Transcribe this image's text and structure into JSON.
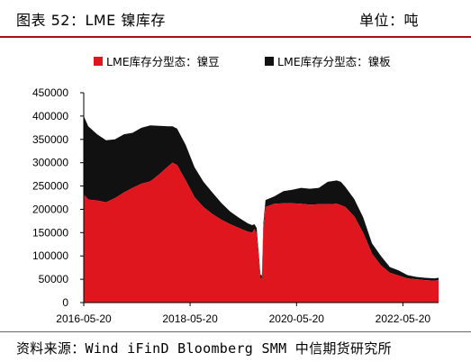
{
  "header": {
    "title": "图表 52：LME 镍库存",
    "unit": "单位：吨"
  },
  "footer": {
    "source": "资料来源：Wind iFinD Bloomberg SMM 中信期货研究所"
  },
  "colors": {
    "accent": "#a8101a",
    "nickel_briquettes": "#e0161e",
    "nickel_plate": "#111111"
  },
  "chart_data": {
    "type": "area",
    "stacked": true,
    "title": "",
    "xlabel": "",
    "ylabel": "",
    "ylim": [
      0,
      450000
    ],
    "yticks": [
      0,
      50000,
      100000,
      150000,
      200000,
      250000,
      300000,
      350000,
      400000,
      450000
    ],
    "ytick_labels": [
      "0",
      "50000",
      "100000",
      "150000",
      "200000",
      "250000",
      "300000",
      "350000",
      "400000",
      "450000"
    ],
    "xlim": [
      "2016-05-20",
      "2023-01-20"
    ],
    "xticks": [
      "2016-05-20",
      "2018-05-20",
      "2020-05-20",
      "2022-05-20"
    ],
    "legend": "top",
    "grid": false,
    "series": [
      {
        "name": "LME库存分型态：镍豆",
        "color": "#e0161e",
        "x": [
          "2016-05-20",
          "2016-06-20",
          "2016-08-20",
          "2016-10-20",
          "2016-12-20",
          "2017-02-20",
          "2017-04-20",
          "2017-06-20",
          "2017-08-20",
          "2017-10-20",
          "2017-12-20",
          "2018-01-20",
          "2018-02-20",
          "2018-04-20",
          "2018-06-20",
          "2018-08-20",
          "2018-10-20",
          "2018-12-20",
          "2019-02-20",
          "2019-04-20",
          "2019-06-20",
          "2019-07-20",
          "2019-08-05",
          "2019-08-20",
          "2019-09-05",
          "2019-09-15",
          "2019-09-25",
          "2019-10-05",
          "2019-10-20",
          "2019-12-20",
          "2020-02-20",
          "2020-04-20",
          "2020-06-20",
          "2020-08-20",
          "2020-10-20",
          "2020-12-20",
          "2021-02-20",
          "2021-03-20",
          "2021-04-20",
          "2021-06-20",
          "2021-08-20",
          "2021-10-20",
          "2021-12-20",
          "2022-02-20",
          "2022-04-20",
          "2022-06-20",
          "2022-08-20",
          "2022-10-20",
          "2022-12-20",
          "2023-01-20"
        ],
        "values": [
          232000,
          221000,
          219000,
          215000,
          224000,
          236000,
          246000,
          255000,
          260000,
          275000,
          292000,
          300000,
          295000,
          262000,
          226000,
          205000,
          190000,
          178000,
          168000,
          160000,
          152000,
          150000,
          158000,
          148000,
          90000,
          52000,
          50000,
          160000,
          205000,
          212000,
          213000,
          213000,
          212000,
          210000,
          211000,
          211000,
          212000,
          209000,
          205000,
          185000,
          150000,
          105000,
          80000,
          64000,
          58000,
          52000,
          50000,
          48000,
          47000,
          48000
        ]
      },
      {
        "name": "LME库存分型态：镍板",
        "color": "#111111",
        "x": [
          "2016-05-20",
          "2016-06-20",
          "2016-08-20",
          "2016-10-20",
          "2016-12-20",
          "2017-02-20",
          "2017-04-20",
          "2017-06-20",
          "2017-08-20",
          "2017-10-20",
          "2017-12-20",
          "2018-01-20",
          "2018-02-20",
          "2018-04-20",
          "2018-06-20",
          "2018-08-20",
          "2018-10-20",
          "2018-12-20",
          "2019-02-20",
          "2019-04-20",
          "2019-06-20",
          "2019-07-20",
          "2019-08-05",
          "2019-08-20",
          "2019-09-05",
          "2019-09-15",
          "2019-09-25",
          "2019-10-05",
          "2019-10-20",
          "2019-12-20",
          "2020-02-20",
          "2020-04-20",
          "2020-06-20",
          "2020-08-20",
          "2020-10-20",
          "2020-12-20",
          "2021-02-20",
          "2021-03-20",
          "2021-04-20",
          "2021-06-20",
          "2021-08-20",
          "2021-10-20",
          "2021-12-20",
          "2022-02-20",
          "2022-04-20",
          "2022-06-20",
          "2022-08-20",
          "2022-10-20",
          "2022-12-20",
          "2023-01-20"
        ],
        "values": [
          168000,
          157000,
          142000,
          133000,
          126000,
          125000,
          118000,
          120000,
          120000,
          104000,
          86000,
          78000,
          78000,
          76000,
          64000,
          54000,
          46000,
          36000,
          27000,
          22000,
          18000,
          16000,
          10000,
          12000,
          10000,
          8000,
          8000,
          10000,
          15000,
          16000,
          26000,
          29000,
          34000,
          34000,
          35000,
          48000,
          50000,
          50000,
          43000,
          37000,
          33000,
          22000,
          20000,
          12000,
          11000,
          7000,
          5000,
          5000,
          5000,
          5000
        ]
      }
    ]
  }
}
